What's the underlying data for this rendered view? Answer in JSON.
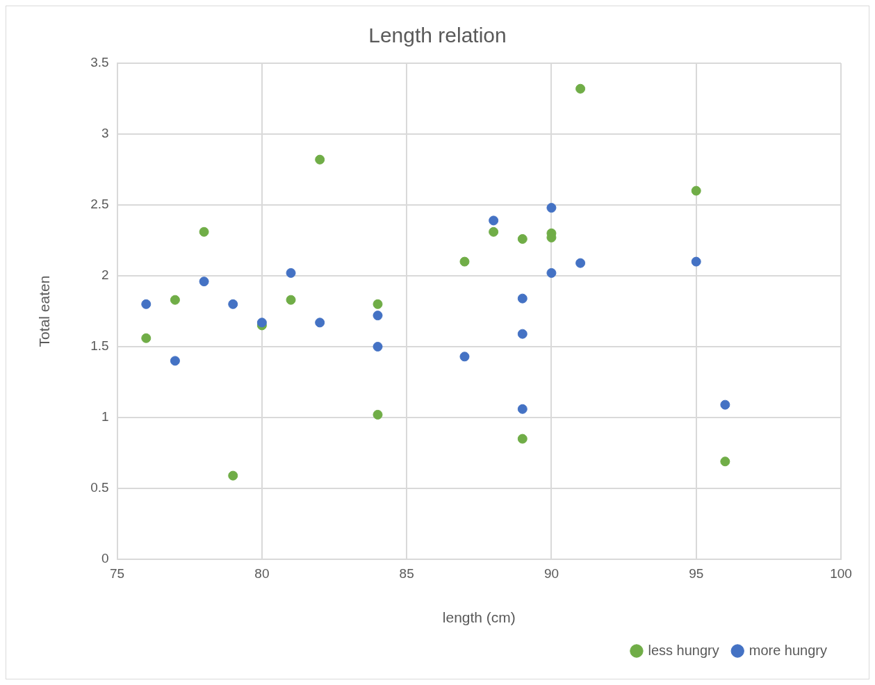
{
  "chart_data": {
    "type": "scatter",
    "title": "Length relation",
    "xlabel": "length (cm)",
    "ylabel": "Total eaten",
    "xlim": [
      75,
      100
    ],
    "xticks": [
      75,
      80,
      85,
      90,
      95,
      100
    ],
    "ylim": [
      0,
      3.5
    ],
    "yticks": [
      0,
      0.5,
      1,
      1.5,
      2,
      2.5,
      3,
      3.5
    ],
    "grid": true,
    "legend": "bottom right",
    "marker": "circle",
    "series": [
      {
        "name": "less hungry",
        "color": "#70ad47",
        "x": [
          76,
          77,
          78,
          79,
          80,
          81,
          82,
          84,
          84,
          87,
          88,
          89,
          89,
          90,
          90,
          91,
          95,
          96
        ],
        "values": [
          1.56,
          1.83,
          2.31,
          0.59,
          1.65,
          1.83,
          2.82,
          1.8,
          1.02,
          2.1,
          2.31,
          2.26,
          0.85,
          2.3,
          2.27,
          3.32,
          2.6,
          0.69
        ]
      },
      {
        "name": "more hungry",
        "color": "#4472c4",
        "x": [
          76,
          77,
          78,
          79,
          80,
          81,
          82,
          84,
          84,
          87,
          88,
          89,
          89,
          89,
          90,
          90,
          91,
          95,
          96
        ],
        "values": [
          1.8,
          1.4,
          1.96,
          1.8,
          1.67,
          2.02,
          1.67,
          1.72,
          1.5,
          1.43,
          2.39,
          1.84,
          1.59,
          1.06,
          2.48,
          2.02,
          2.09,
          2.1,
          1.09
        ]
      }
    ]
  }
}
